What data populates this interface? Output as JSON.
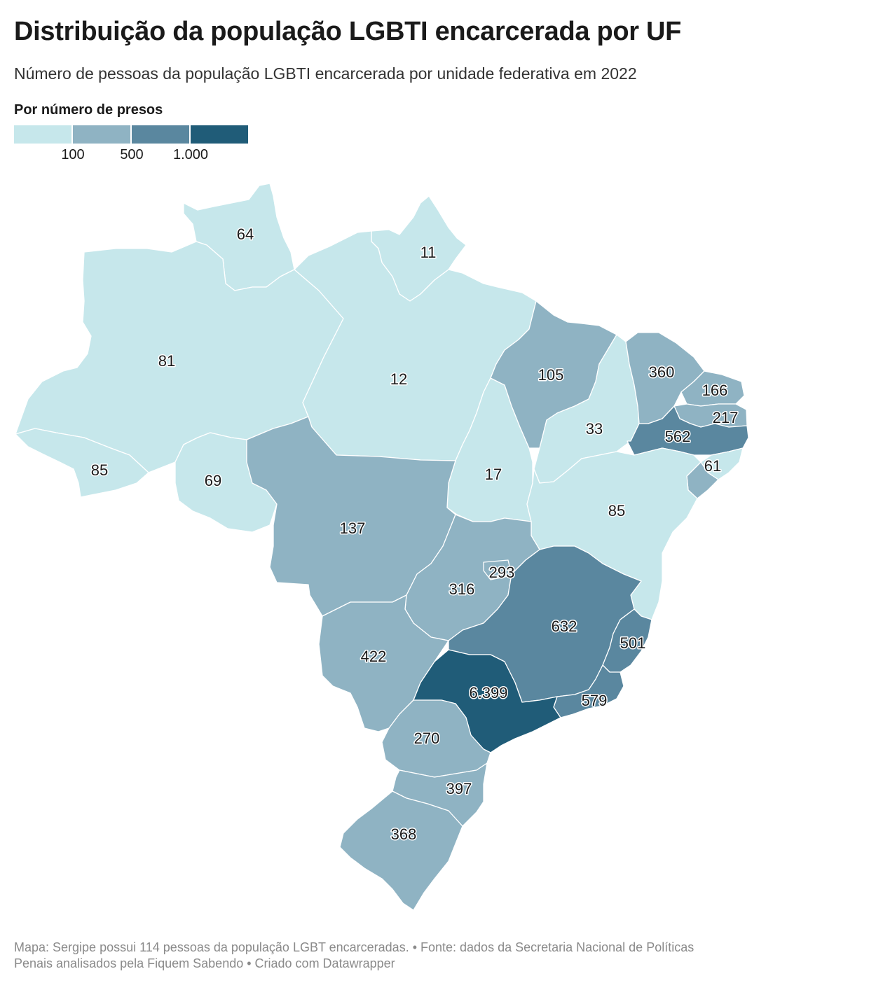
{
  "title": "Distribuição da população LGBTI encarcerada por UF",
  "subtitle": "Número de pessoas da população LGBTI encarcerada por unidade federativa em 2022",
  "legend": {
    "title": "Por número de presos",
    "colors": [
      "#c6e7eb",
      "#8fb3c3",
      "#5a879f",
      "#205c78"
    ],
    "ticks": [
      "100",
      "500",
      "1.000"
    ]
  },
  "states": {
    "RR": "64",
    "AP": "11",
    "AM": "81",
    "PA": "12",
    "AC": "85",
    "RO": "69",
    "MT": "137",
    "TO": "17",
    "MA": "105",
    "PI": "33",
    "CE": "360",
    "RN": "166",
    "PB": "217",
    "PE": "562",
    "AL": "61",
    "BA": "85",
    "GO": "316",
    "DF": "293",
    "MS": "422",
    "MG": "632",
    "ES": "501",
    "SP": "6.399",
    "RJ": "579",
    "PR": "270",
    "SC": "397",
    "RS": "368"
  },
  "notes": {
    "line1": "Mapa: Sergipe possui 114 pessoas da população LGBT encarceradas. • Fonte: dados da Secretaria Nacional de Políticas",
    "line2": "Penais analisados pela Fiquem Sabendo • Criado com Datawrapper"
  }
}
